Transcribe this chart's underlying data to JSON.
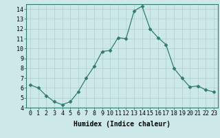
{
  "x": [
    0,
    1,
    2,
    3,
    4,
    5,
    6,
    7,
    8,
    9,
    10,
    11,
    12,
    13,
    14,
    15,
    16,
    17,
    18,
    19,
    20,
    21,
    22,
    23
  ],
  "y": [
    6.3,
    6.0,
    5.2,
    4.6,
    4.3,
    4.6,
    5.6,
    7.0,
    8.2,
    9.7,
    9.8,
    11.1,
    11.0,
    13.8,
    14.3,
    12.0,
    11.1,
    10.4,
    8.0,
    7.0,
    6.1,
    6.2,
    5.8,
    5.6
  ],
  "line_color": "#2e7d6e",
  "marker": "D",
  "marker_size": 2.5,
  "bg_color": "#cce8e8",
  "grid_color": "#b0cece",
  "xlabel": "Humidex (Indice chaleur)",
  "ylim": [
    4,
    14.5
  ],
  "xlim": [
    -0.5,
    23.5
  ],
  "yticks": [
    4,
    5,
    6,
    7,
    8,
    9,
    10,
    11,
    12,
    13,
    14
  ],
  "xticks": [
    0,
    1,
    2,
    3,
    4,
    5,
    6,
    7,
    8,
    9,
    10,
    11,
    12,
    13,
    14,
    15,
    16,
    17,
    18,
    19,
    20,
    21,
    22,
    23
  ],
  "tick_label_size": 6,
  "xlabel_size": 7,
  "axis_color": "#2e7d6e",
  "spine_color": "#2e7d6e"
}
